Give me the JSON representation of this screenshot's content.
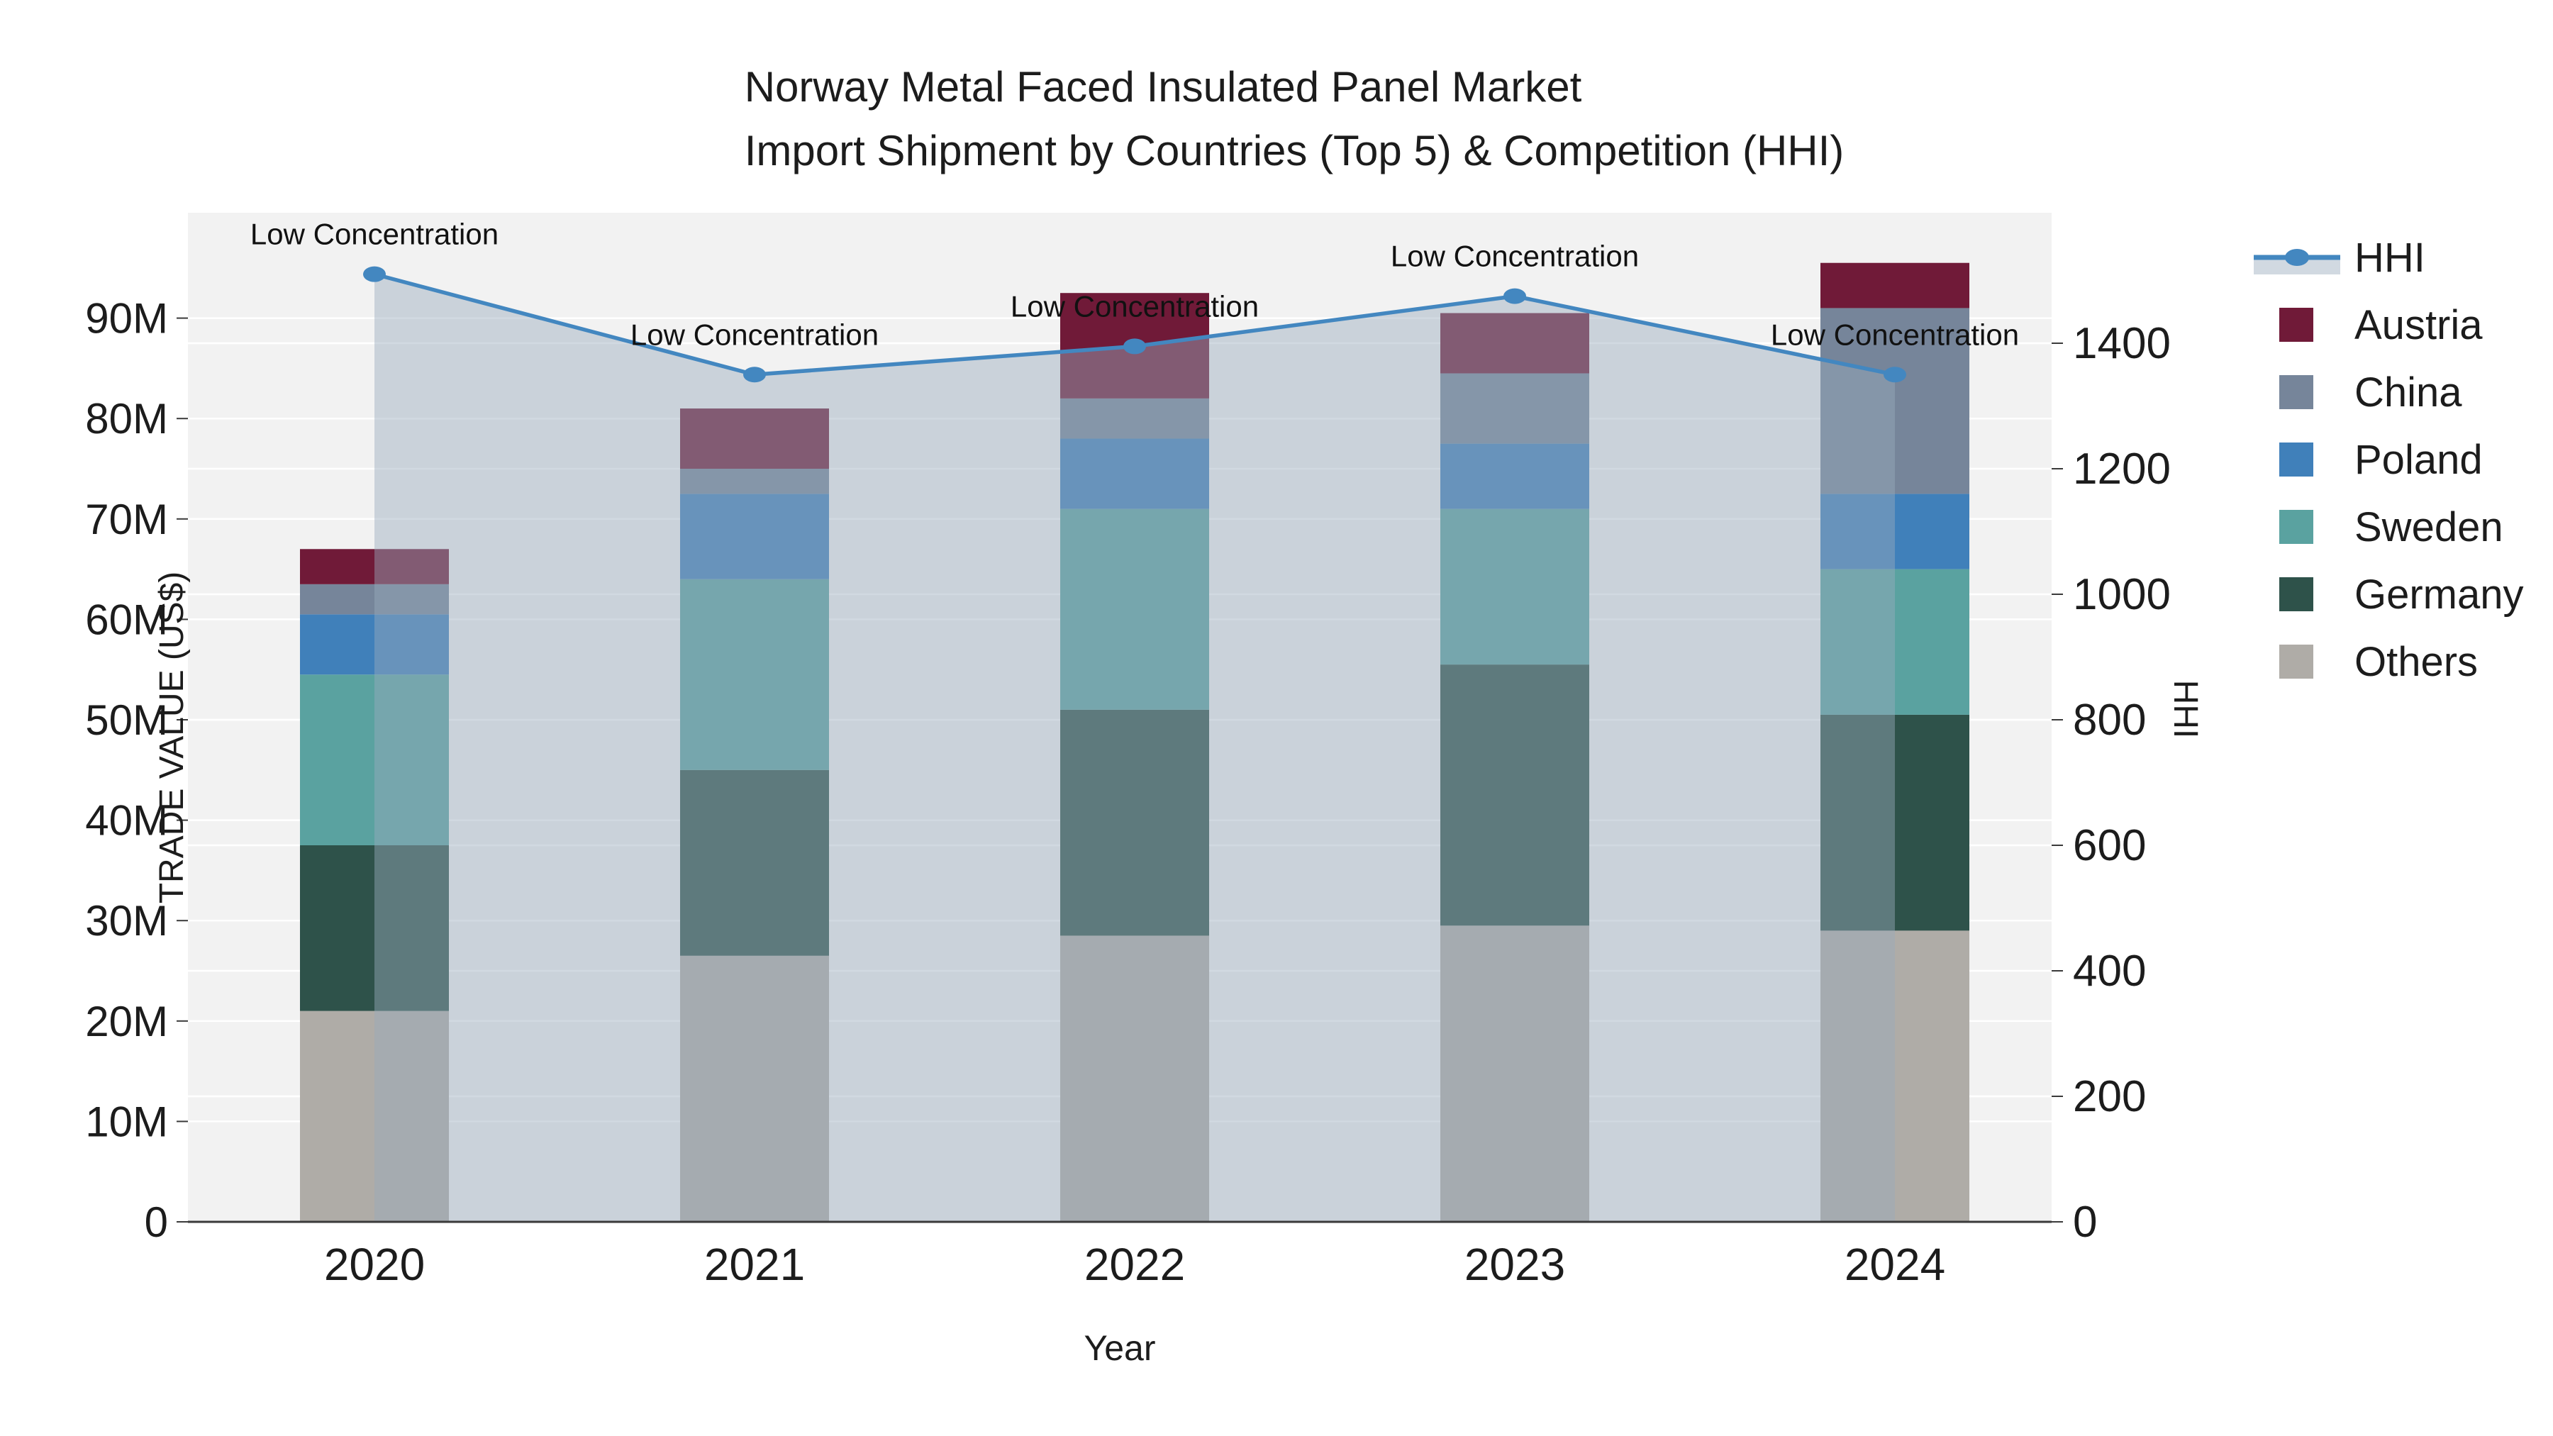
{
  "title_line1": "Norway Metal Faced Insulated Panel Market",
  "title_line2": "Import Shipment by Countries (Top 5) & Competition (HHI)",
  "axes": {
    "x_title": "Year",
    "y_left_title": "TRADE VALUE (US$)",
    "y_right_title": "HHI",
    "y_left_ticks": [
      "0",
      "10M",
      "20M",
      "30M",
      "40M",
      "50M",
      "60M",
      "70M",
      "80M",
      "90M"
    ],
    "y_right_ticks": [
      "0",
      "200",
      "400",
      "600",
      "800",
      "1000",
      "1200",
      "1400"
    ]
  },
  "legend": {
    "order": [
      "HHI",
      "Austria",
      "China",
      "Poland",
      "Sweden",
      "Germany",
      "Others"
    ]
  },
  "colors": {
    "Austria": "#701a38",
    "China": "#76859a",
    "Poland": "#4080ba",
    "Sweden": "#5aa2a0",
    "Germany": "#2e524a",
    "Others": "#afaca7",
    "hhi_line": "#4387c0",
    "area_fill": "rgba(154,170,189,0.45)",
    "plot_bg": "#f2f2f2",
    "grid": "#ffffff",
    "axis_line": "#3a3a3a",
    "text": "#1c1c1c"
  },
  "chart_data": {
    "type": "bar-line-combo",
    "categories": [
      "2020",
      "2021",
      "2022",
      "2023",
      "2024"
    ],
    "stack_order": [
      "Others",
      "Germany",
      "Sweden",
      "Poland",
      "China",
      "Austria"
    ],
    "series": [
      {
        "name": "Others",
        "values": [
          21.0,
          26.5,
          28.5,
          29.5,
          29.0
        ]
      },
      {
        "name": "Germany",
        "values": [
          16.5,
          18.5,
          22.5,
          26.0,
          21.5
        ]
      },
      {
        "name": "Sweden",
        "values": [
          17.0,
          19.0,
          20.0,
          15.5,
          14.5
        ]
      },
      {
        "name": "Poland",
        "values": [
          6.0,
          8.5,
          7.0,
          6.5,
          7.5
        ]
      },
      {
        "name": "China",
        "values": [
          3.0,
          2.5,
          4.0,
          7.0,
          18.5
        ]
      },
      {
        "name": "Austria",
        "values": [
          3.5,
          6.0,
          10.5,
          6.0,
          4.5
        ]
      }
    ],
    "bar_totals_musd": [
      67.0,
      81.0,
      92.5,
      90.5,
      95.5
    ],
    "line_series": {
      "name": "HHI",
      "values": [
        1510,
        1350,
        1395,
        1475,
        1350
      ],
      "axis": "right"
    },
    "annotations": [
      {
        "x": "2020",
        "text": "Low Concentration"
      },
      {
        "x": "2021",
        "text": "Low Concentration"
      },
      {
        "x": "2022",
        "text": "Low Concentration"
      },
      {
        "x": "2023",
        "text": "Low Concentration"
      },
      {
        "x": "2024",
        "text": "Low Concentration"
      }
    ],
    "xlabel": "Year",
    "ylabel_left": "TRADE VALUE (US$)",
    "ylabel_right": "HHI",
    "ylim_left_musd": [
      0,
      100.5
    ],
    "ylim_right_hhi": [
      0,
      1600
    ],
    "grid": true,
    "legend_position": "right",
    "area_under_line": true
  }
}
